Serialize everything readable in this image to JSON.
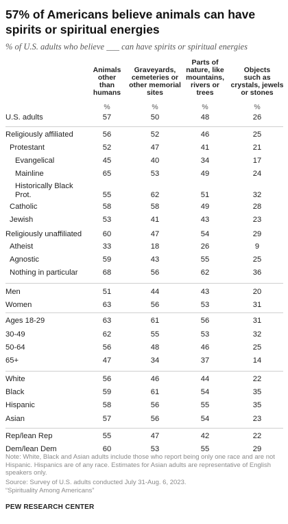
{
  "title": "57% of Americans believe animals can have spirits or spiritual energies",
  "subtitle": "% of U.S. adults who believe ___ can have spirits or spiritual energies",
  "chart_data": {
    "type": "table",
    "columns": [
      {
        "name": "Animals\nother\nthan\nhumans",
        "unit": "%"
      },
      {
        "name": "Graveyards,\ncemeteries or\nother memorial\nsites",
        "unit": "%"
      },
      {
        "name": "Parts of\nnature, like\nmountains,\nrivers or\ntrees",
        "unit": "%"
      },
      {
        "name": "Objects\nsuch as\ncrystals, jewels\nor stones",
        "unit": "%"
      }
    ],
    "rows": [
      {
        "label": "U.S. adults",
        "values": [
          57,
          50,
          48,
          26
        ]
      },
      {
        "label": "Religiously affiliated",
        "values": [
          56,
          52,
          46,
          25
        ]
      },
      {
        "label": "Protestant",
        "values": [
          52,
          47,
          41,
          21
        ]
      },
      {
        "label": "Evangelical",
        "values": [
          45,
          40,
          34,
          17
        ]
      },
      {
        "label": "Mainline",
        "values": [
          65,
          53,
          49,
          24
        ]
      },
      {
        "label": "Historically Black\nProt.",
        "values": [
          55,
          62,
          51,
          32
        ]
      },
      {
        "label": "Catholic",
        "values": [
          58,
          58,
          49,
          28
        ]
      },
      {
        "label": "Jewish",
        "values": [
          53,
          41,
          43,
          23
        ]
      },
      {
        "label": "Religiously unaffiliated",
        "values": [
          60,
          47,
          54,
          29
        ]
      },
      {
        "label": "Atheist",
        "values": [
          33,
          18,
          26,
          9
        ]
      },
      {
        "label": "Agnostic",
        "values": [
          59,
          43,
          55,
          25
        ]
      },
      {
        "label": "Nothing in particular",
        "values": [
          68,
          56,
          62,
          36
        ]
      },
      {
        "label": "Men",
        "values": [
          51,
          44,
          43,
          20
        ]
      },
      {
        "label": "Women",
        "values": [
          63,
          56,
          53,
          31
        ]
      },
      {
        "label": "Ages 18-29",
        "values": [
          63,
          61,
          56,
          31
        ]
      },
      {
        "label": "30-49",
        "values": [
          62,
          55,
          53,
          32
        ]
      },
      {
        "label": "50-64",
        "values": [
          56,
          48,
          46,
          25
        ]
      },
      {
        "label": "65+",
        "values": [
          47,
          34,
          37,
          14
        ]
      },
      {
        "label": "White",
        "values": [
          56,
          46,
          44,
          22
        ]
      },
      {
        "label": "Black",
        "values": [
          59,
          61,
          54,
          35
        ]
      },
      {
        "label": "Hispanic",
        "values": [
          58,
          56,
          55,
          35
        ]
      },
      {
        "label": "Asian",
        "values": [
          57,
          56,
          54,
          23
        ]
      },
      {
        "label": "Rep/lean Rep",
        "values": [
          55,
          47,
          42,
          22
        ]
      },
      {
        "label": "Dem/lean Dem",
        "values": [
          60,
          53,
          55,
          29
        ]
      }
    ]
  },
  "notes": {
    "note": "Note: White, Black and Asian adults include those who report being only one race and are not Hispanic. Hispanics are of any race. Estimates for Asian adults are representative of English speakers only.",
    "source": "Source: Survey of U.S. adults conducted July 31-Aug. 6, 2023.",
    "report": "“Spirituality Among Americans”"
  },
  "logo_text": "PEW RESEARCH CENTER"
}
